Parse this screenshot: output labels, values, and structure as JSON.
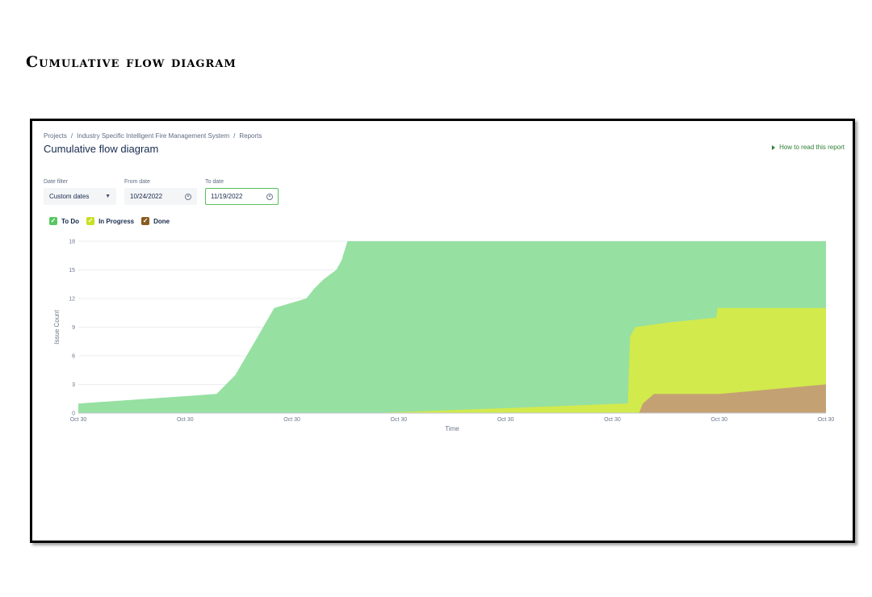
{
  "doc_heading": "Cumulative flow diagram",
  "breadcrumb": [
    "Projects",
    "Industry Specific Intelligent Fire Management System",
    "Reports"
  ],
  "page_title": "Cumulative flow diagram",
  "help_link": "How to read this report",
  "filters": {
    "date_filter": {
      "label": "Date filter",
      "value": "Custom dates"
    },
    "from_date": {
      "label": "From date",
      "value": "10/24/2022"
    },
    "to_date": {
      "label": "To date",
      "value": "11/19/2022"
    }
  },
  "legend": [
    {
      "name": "To Do",
      "color": "#57c75f"
    },
    {
      "name": "In Progress",
      "color": "#c8e021"
    },
    {
      "name": "Done",
      "color": "#8a5a1f"
    }
  ],
  "chart_data": {
    "type": "area",
    "stacked": false,
    "xlabel": "Time",
    "ylabel": "Issue Count",
    "ylim": [
      0,
      18
    ],
    "yticks": [
      0,
      3,
      6,
      9,
      12,
      15,
      18
    ],
    "xtick_labels": [
      "Oct 30",
      "Oct 30",
      "Oct 30",
      "Oct 30",
      "Oct 30",
      "Oct 30",
      "Oct 30",
      "Oct 30"
    ],
    "grid": true,
    "series": [
      {
        "name": "To Do",
        "color": "#96e0a2",
        "points": [
          [
            0,
            1
          ],
          [
            0.185,
            2
          ],
          [
            0.21,
            4
          ],
          [
            0.225,
            6
          ],
          [
            0.24,
            8
          ],
          [
            0.262,
            11
          ],
          [
            0.305,
            12
          ],
          [
            0.315,
            13
          ],
          [
            0.328,
            14
          ],
          [
            0.345,
            15
          ],
          [
            0.352,
            16
          ],
          [
            0.36,
            18
          ],
          [
            1,
            18
          ]
        ]
      },
      {
        "name": "In Progress",
        "color": "#d2ea4c",
        "points": [
          [
            0,
            0
          ],
          [
            0.39,
            0
          ],
          [
            0.5,
            0.3
          ],
          [
            0.6,
            0.6
          ],
          [
            0.73,
            1
          ],
          [
            0.735,
            1
          ],
          [
            0.738,
            8
          ],
          [
            0.745,
            9
          ],
          [
            0.79,
            9.5
          ],
          [
            0.853,
            10
          ],
          [
            0.855,
            11
          ],
          [
            1,
            11
          ]
        ]
      },
      {
        "name": "Done",
        "color": "#c4a173",
        "points": [
          [
            0,
            0
          ],
          [
            0.75,
            0
          ],
          [
            0.755,
            1
          ],
          [
            0.77,
            2
          ],
          [
            0.858,
            2
          ],
          [
            1,
            3
          ]
        ]
      }
    ]
  }
}
